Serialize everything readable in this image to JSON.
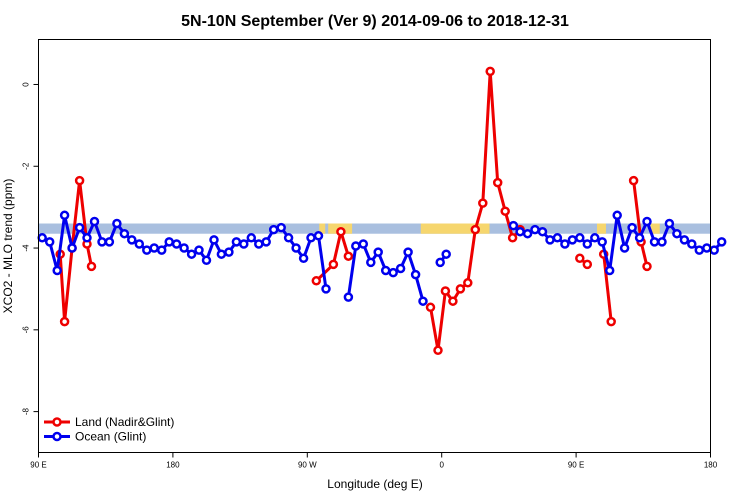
{
  "chart_data": {
    "type": "line",
    "title": "5N-10N September (Ver 9)   2014-09-06 to 2018-12-31",
    "xlabel": "Longitude (deg E)",
    "ylabel": "XCO2 - MLO trend (ppm)",
    "xlim": [
      90,
      540
    ],
    "ylim": [
      -9,
      1.1
    ],
    "x_ticks": [
      {
        "value": 90,
        "label": "90 E"
      },
      {
        "value": 180,
        "label": "180"
      },
      {
        "value": 270,
        "label": "90 W"
      },
      {
        "value": 360,
        "label": "0"
      },
      {
        "value": 450,
        "label": "90 E"
      },
      {
        "value": 540,
        "label": "180"
      }
    ],
    "y_ticks": [
      {
        "value": 0,
        "label": "0"
      },
      {
        "value": -2,
        "label": "-2"
      },
      {
        "value": -4,
        "label": "-4"
      },
      {
        "value": -6,
        "label": "-6"
      },
      {
        "value": -8,
        "label": "-8"
      }
    ],
    "grid": false,
    "legend_position": "bottom-left",
    "band": {
      "y_min": -3.65,
      "y_max": -3.4,
      "color": "#a9bfdf",
      "land_color": "#f6d66e"
    },
    "land_segments": [
      [
        278,
        282
      ],
      [
        284,
        300
      ],
      [
        346,
        392
      ],
      [
        464,
        470
      ],
      [
        500,
        506
      ]
    ],
    "series": [
      {
        "name": "Land (Nadir&Glint)",
        "color": "#ee0000",
        "segments": [
          [
            [
              104.5,
              -4.15
            ],
            [
              107.5,
              -5.8
            ],
            [
              112.5,
              -4.0
            ],
            [
              117.5,
              -2.35
            ],
            [
              122.5,
              -3.9
            ],
            [
              125.5,
              -4.45
            ]
          ],
          [
            [
              276,
              -4.8
            ],
            [
              287.5,
              -4.4
            ],
            [
              292.5,
              -3.6
            ],
            [
              297.5,
              -4.2
            ]
          ],
          [
            [
              352.5,
              -5.45
            ],
            [
              357.5,
              -6.5
            ],
            [
              362.5,
              -5.05
            ],
            [
              367.5,
              -5.3
            ],
            [
              372.5,
              -5.0
            ],
            [
              377.5,
              -4.85
            ],
            [
              382.5,
              -3.55
            ],
            [
              387.5,
              -2.9
            ],
            [
              392.5,
              0.32
            ],
            [
              397.5,
              -2.4
            ],
            [
              402.5,
              -3.1
            ],
            [
              407.5,
              -3.75
            ],
            [
              412.5,
              -3.55
            ]
          ],
          [
            [
              452.5,
              -4.25
            ],
            [
              457.5,
              -4.4
            ]
          ],
          [
            [
              468.5,
              -4.15
            ],
            [
              473.5,
              -5.8
            ]
          ],
          [
            [
              488.5,
              -2.35
            ],
            [
              493.5,
              -3.85
            ],
            [
              497.5,
              -4.45
            ]
          ]
        ]
      },
      {
        "name": "Ocean (Glint)",
        "color": "#0000ee",
        "segments": [
          [
            [
              92.5,
              -3.75
            ],
            [
              97.5,
              -3.85
            ],
            [
              102.5,
              -4.55
            ],
            [
              107.5,
              -3.2
            ],
            [
              112.5,
              -4.0
            ],
            [
              117.5,
              -3.5
            ],
            [
              122.5,
              -3.75
            ],
            [
              127.5,
              -3.35
            ],
            [
              132.5,
              -3.85
            ],
            [
              137.5,
              -3.85
            ],
            [
              142.5,
              -3.4
            ],
            [
              147.5,
              -3.65
            ],
            [
              152.5,
              -3.8
            ],
            [
              157.5,
              -3.9
            ],
            [
              162.5,
              -4.05
            ],
            [
              167.5,
              -4.0
            ],
            [
              172.5,
              -4.05
            ],
            [
              177.5,
              -3.85
            ],
            [
              182.5,
              -3.9
            ],
            [
              187.5,
              -4.0
            ],
            [
              192.5,
              -4.15
            ],
            [
              197.5,
              -4.05
            ],
            [
              202.5,
              -4.3
            ],
            [
              207.5,
              -3.8
            ],
            [
              212.5,
              -4.15
            ],
            [
              217.5,
              -4.1
            ],
            [
              222.5,
              -3.85
            ],
            [
              227.5,
              -3.9
            ],
            [
              232.5,
              -3.75
            ],
            [
              237.5,
              -3.9
            ],
            [
              242.5,
              -3.85
            ],
            [
              247.5,
              -3.55
            ],
            [
              252.5,
              -3.5
            ],
            [
              257.5,
              -3.75
            ],
            [
              262.5,
              -4.0
            ],
            [
              267.5,
              -4.25
            ],
            [
              272.5,
              -3.75
            ],
            [
              277.5,
              -3.7
            ],
            [
              282.5,
              -5.0
            ]
          ],
          [
            [
              297.5,
              -5.2
            ],
            [
              302.5,
              -3.95
            ],
            [
              307.5,
              -3.9
            ],
            [
              312.5,
              -4.35
            ],
            [
              317.5,
              -4.1
            ],
            [
              322.5,
              -4.55
            ],
            [
              327.5,
              -4.6
            ],
            [
              332.5,
              -4.5
            ],
            [
              337.5,
              -4.1
            ],
            [
              342.5,
              -4.65
            ],
            [
              347.5,
              -5.3
            ]
          ],
          [
            [
              359,
              -4.35
            ],
            [
              363,
              -4.15
            ]
          ],
          [
            [
              408,
              -3.45
            ],
            [
              412.5,
              -3.6
            ],
            [
              417.5,
              -3.65
            ],
            [
              422.5,
              -3.55
            ],
            [
              427.5,
              -3.6
            ],
            [
              432.5,
              -3.8
            ],
            [
              437.5,
              -3.75
            ],
            [
              442.5,
              -3.9
            ],
            [
              447.5,
              -3.8
            ],
            [
              452.5,
              -3.75
            ],
            [
              457.5,
              -3.9
            ],
            [
              462.5,
              -3.75
            ],
            [
              467.5,
              -3.85
            ],
            [
              472.5,
              -4.55
            ],
            [
              477.5,
              -3.2
            ],
            [
              482.5,
              -4.0
            ],
            [
              487.5,
              -3.5
            ],
            [
              492.5,
              -3.75
            ],
            [
              497.5,
              -3.35
            ],
            [
              502.5,
              -3.85
            ],
            [
              507.5,
              -3.85
            ],
            [
              512.5,
              -3.4
            ],
            [
              517.5,
              -3.65
            ],
            [
              522.5,
              -3.8
            ],
            [
              527.5,
              -3.9
            ],
            [
              532.5,
              -4.05
            ],
            [
              537.5,
              -4.0
            ],
            [
              542.5,
              -4.05
            ],
            [
              547.5,
              -3.85
            ]
          ]
        ]
      }
    ]
  }
}
